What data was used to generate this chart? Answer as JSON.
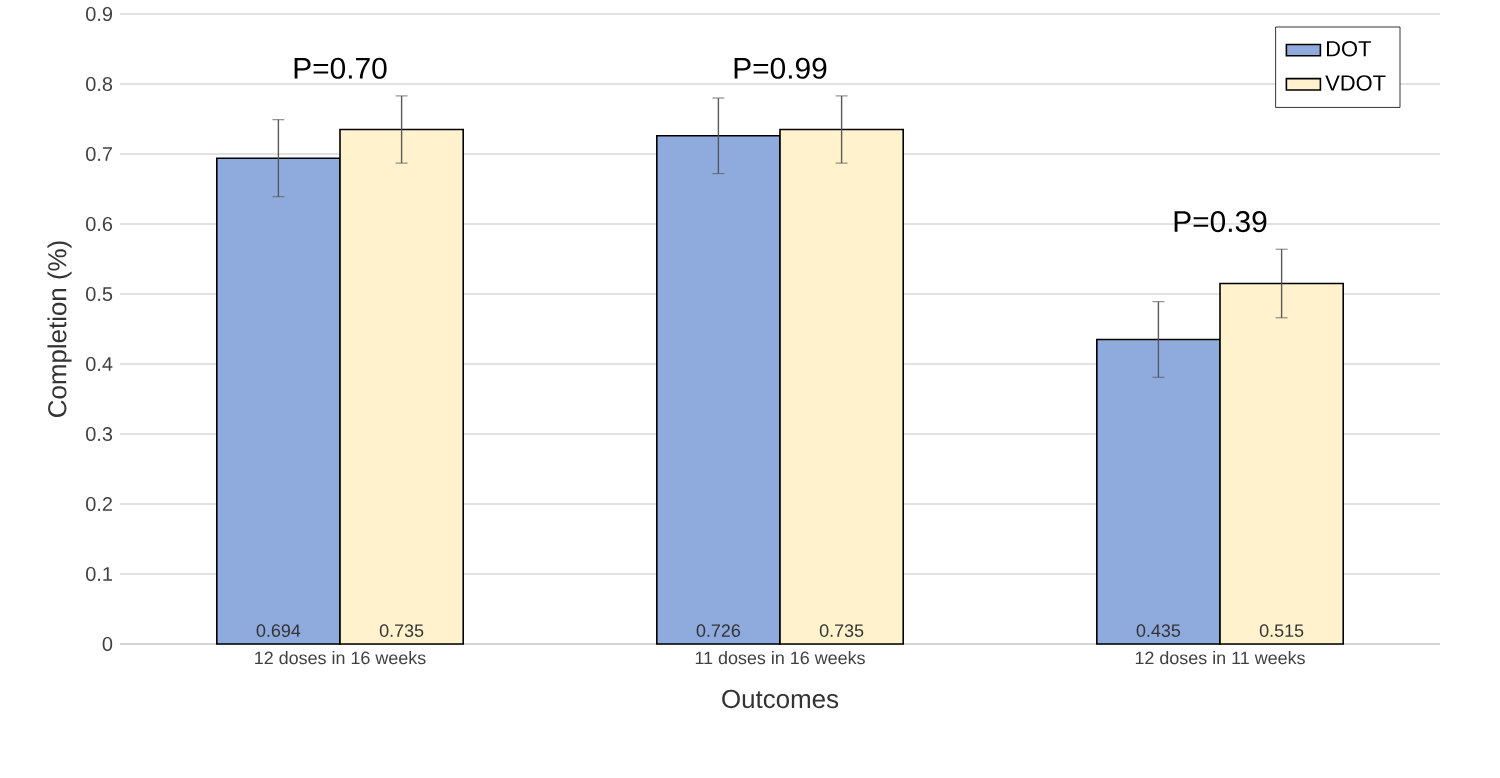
{
  "chart_data": {
    "type": "bar",
    "xlabel": "Outcomes",
    "ylabel": "Completion (%)",
    "categories": [
      "12 doses in 16 weeks",
      "11 doses in 16 weeks",
      "12 doses in 11 weeks"
    ],
    "series": [
      {
        "name": "DOT",
        "color": "#8faadc",
        "values": [
          0.694,
          0.726,
          0.435
        ],
        "errors": [
          0.055,
          0.054,
          0.054
        ]
      },
      {
        "name": "VDOT",
        "color": "#fff2cc",
        "values": [
          0.735,
          0.735,
          0.515
        ],
        "errors": [
          0.048,
          0.048,
          0.049
        ]
      }
    ],
    "ylim": [
      0,
      0.9
    ],
    "yticks": [
      0,
      0.1,
      0.2,
      0.3,
      0.4,
      0.5,
      0.6,
      0.7,
      0.8,
      0.9
    ],
    "grid": "y",
    "legend": "top right",
    "data_labels": true,
    "annotations": [
      "P=0.70",
      "P=0.99",
      "P=0.39"
    ]
  }
}
